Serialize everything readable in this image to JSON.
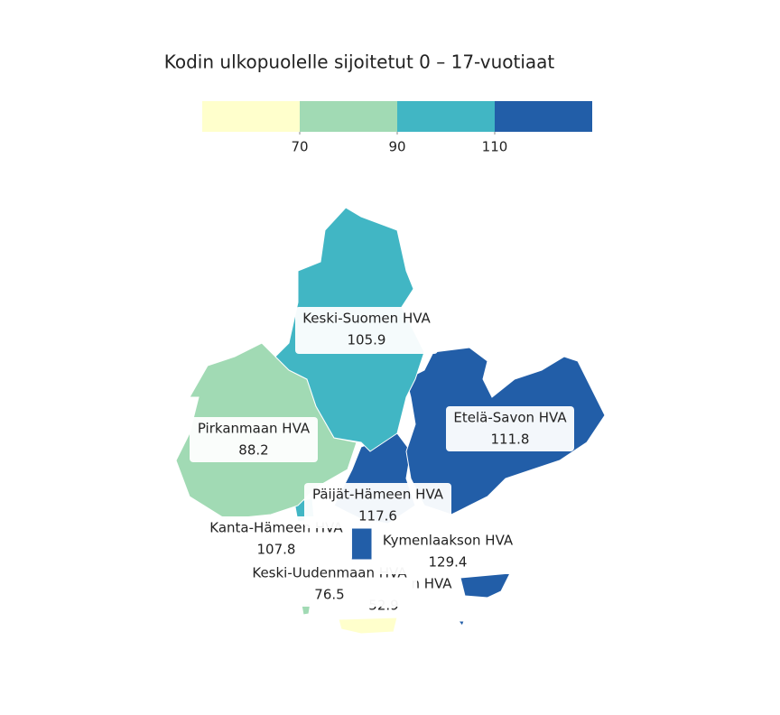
{
  "chart_data": {
    "type": "choropleth",
    "title": "Kodin ulkopuolelle sijoitetut 0 – 17-vuotiaat",
    "legend": {
      "breaks": [
        70,
        90,
        110
      ],
      "colors": [
        "#ffffcc",
        "#a1dab4",
        "#41b6c4",
        "#225ea8"
      ]
    },
    "regions": [
      {
        "name": "n HVA",
        "value": 52.9
      },
      {
        "name": "Kanta-Hämeen HVA",
        "value": 107.8
      },
      {
        "name": "Keski-Uudenmaan HVA",
        "value": 76.5
      },
      {
        "name": "Kymenlaakson HVA",
        "value": 129.4
      },
      {
        "name": "Päijät-Hämeen HVA",
        "value": 117.6
      },
      {
        "name": "Pirkanmaan HVA",
        "value": 88.2
      },
      {
        "name": "Etelä-Savon HVA",
        "value": 111.8
      },
      {
        "name": "Keski-Suomen HVA",
        "value": 105.9
      }
    ]
  }
}
